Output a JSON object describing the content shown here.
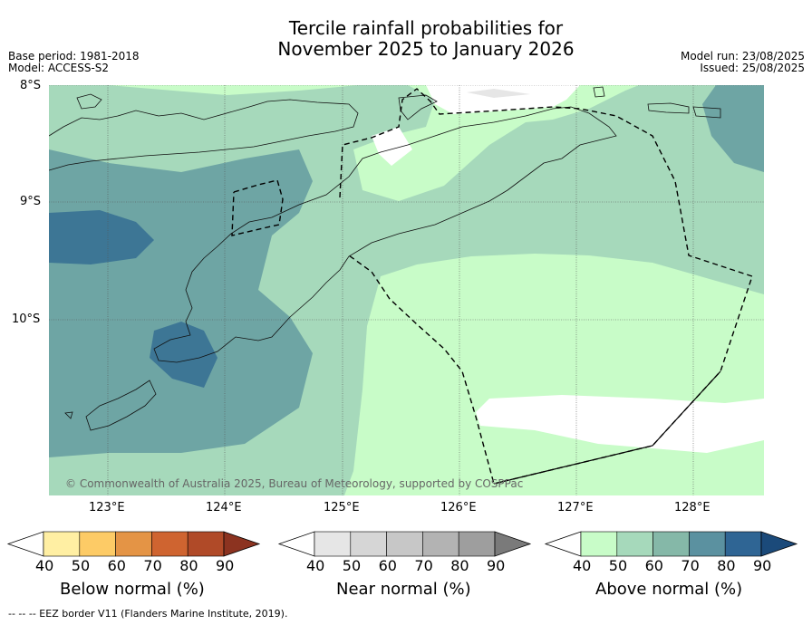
{
  "title": {
    "line1": "Tercile rainfall probabilities for",
    "line2": "November 2025 to January 2026"
  },
  "meta": {
    "base_period": "Base period: 1981-2018",
    "model": "Model: ACCESS-S2",
    "model_run": "Model run: 23/08/2025",
    "issued": "Issued: 25/08/2025"
  },
  "map": {
    "latitudes": [
      "8°S",
      "9°S",
      "10°S"
    ],
    "longitudes": [
      "123°E",
      "124°E",
      "125°E",
      "126°E",
      "127°E",
      "128°E"
    ],
    "copyright": "© Commonwealth of Australia 2025, Bureau of Meteorology, supported by COSPPac"
  },
  "colorbars": [
    {
      "title": "Below normal (%)",
      "ticks": [
        "40",
        "50",
        "60",
        "70",
        "80",
        "90"
      ],
      "colors": [
        "#ffffff",
        "#ffefa3",
        "#fdcb66",
        "#e49445",
        "#cf6430",
        "#b04a28",
        "#8c3320"
      ]
    },
    {
      "title": "Near normal (%)",
      "ticks": [
        "40",
        "50",
        "60",
        "70",
        "80",
        "90"
      ],
      "colors": [
        "#ffffff",
        "#e6e6e6",
        "#d6d6d6",
        "#c7c7c7",
        "#b3b3b3",
        "#9e9e9e",
        "#7a7a7a"
      ]
    },
    {
      "title": "Above normal (%)",
      "ticks": [
        "40",
        "50",
        "60",
        "70",
        "80",
        "90"
      ],
      "colors": [
        "#ffffff",
        "#c8fcc8",
        "#a6d9bb",
        "#85b8a8",
        "#5b91a0",
        "#2f6594",
        "#1b4a7a"
      ]
    }
  ],
  "footnote": "--  --  -- EEZ border V11 (Flanders Marine Institute, 2019)."
}
